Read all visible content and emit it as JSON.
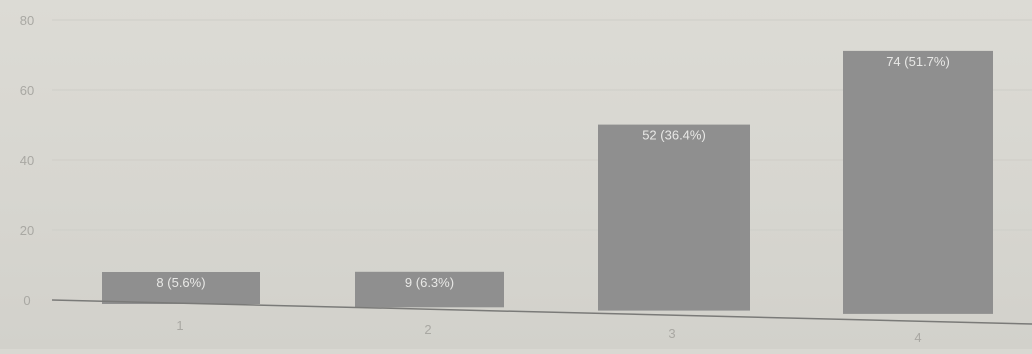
{
  "chart_data": {
    "type": "bar",
    "categories": [
      "1",
      "2",
      "3",
      "4"
    ],
    "values": [
      8,
      9,
      52,
      74
    ],
    "data_labels": [
      "8 (5.6%)",
      "9 (6.3%)",
      "52 (36.4%)",
      "74 (51.7%)"
    ],
    "y_ticks": [
      "0",
      "20",
      "40",
      "60",
      "80"
    ],
    "ylim": [
      0,
      80
    ],
    "grid": true,
    "legend": "none",
    "colors": {
      "bar": "#8f8f8f",
      "bar_label": "#e8e8e6",
      "axis": "#7a7a78",
      "tick_label": "#a9a8a3",
      "grid": "#cfcec8"
    }
  }
}
